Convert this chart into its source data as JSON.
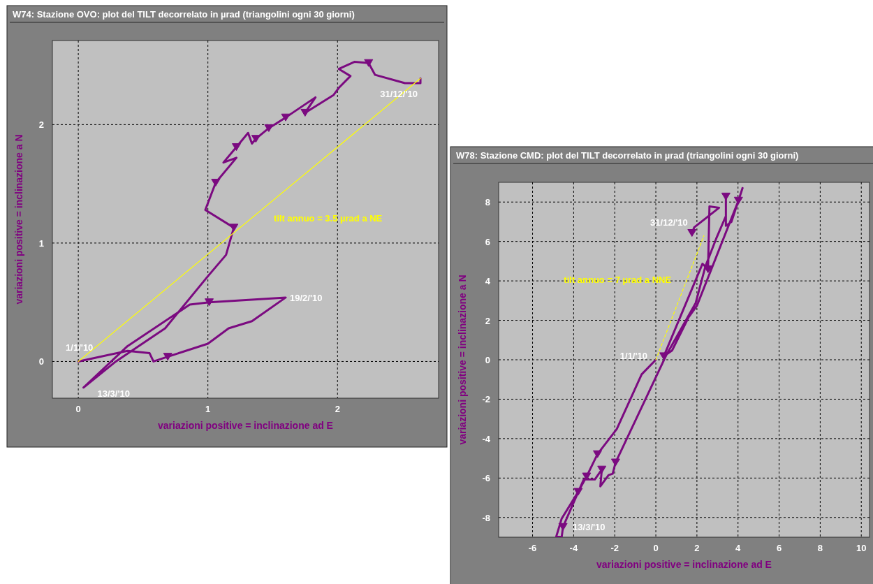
{
  "chart_data": [
    {
      "type": "line",
      "title": "W74: Stazione OVO: plot del TILT decorrelato in µrad (triangolini ogni 30 giorni)",
      "xlabel": "variazioni positive = inclinazione ad E",
      "ylabel": "variazioni positive = inclinazione a N",
      "xlim": [
        -0.2,
        2.78
      ],
      "ylim": [
        -0.31,
        2.71
      ],
      "xticks": [
        0,
        1,
        2
      ],
      "yticks": [
        0,
        1,
        2
      ],
      "grid": true,
      "series": [
        {
          "color": "#7b0a80",
          "x": [
            0,
            0.38,
            0.55,
            0.58,
            0.69,
            1.0,
            1.16,
            1.34,
            1.6,
            1.01,
            0.86,
            0.38,
            0.04,
            0.29,
            0.67,
            1.0,
            1.14,
            1.2,
            0.98,
            1.06,
            1.22,
            1.12,
            1.22,
            1.31,
            1.34,
            1.37,
            1.47,
            1.6,
            1.64,
            1.83,
            1.75,
            1.97,
            2.01,
            2.1,
            2.01,
            2.13,
            2.24,
            2.29,
            2.52,
            2.64,
            2.64
          ],
          "values": [
            0,
            0.09,
            0.07,
            0.0,
            0.04,
            0.15,
            0.28,
            0.34,
            0.54,
            0.5,
            0.48,
            0.13,
            -0.22,
            0.0,
            0.28,
            0.72,
            0.9,
            1.13,
            1.28,
            1.51,
            1.72,
            1.68,
            1.81,
            1.93,
            1.84,
            1.88,
            1.97,
            2.06,
            2.09,
            2.23,
            2.1,
            2.25,
            2.31,
            2.41,
            2.47,
            2.53,
            2.52,
            2.42,
            2.35,
            2.35,
            2.39
          ]
        },
        {
          "type": "scatter",
          "marker": "triangle",
          "color": "#7b0a80",
          "x": [
            0.69,
            1.01,
            1.2,
            1.06,
            1.22,
            1.37,
            1.47,
            1.6,
            1.75,
            2.24
          ],
          "values": [
            0.04,
            0.5,
            1.13,
            1.51,
            1.81,
            1.88,
            1.97,
            2.06,
            2.1,
            2.52
          ]
        },
        {
          "type": "line",
          "name": "tilt annuo = 3.5 µrad a NE",
          "color": "#ffff00",
          "line_style": "solid",
          "x": [
            0,
            2.64
          ],
          "values": [
            0,
            2.39
          ]
        }
      ],
      "annotations": [
        {
          "text": "1/1/'10",
          "x": 0,
          "y": 0
        },
        {
          "text": "19/2/'10",
          "x": 1.6,
          "y": 0.54
        },
        {
          "text": "13/3/'10",
          "x": 0.04,
          "y": -0.22
        },
        {
          "text": "31/12/'10",
          "x": 2.64,
          "y": 2.39
        }
      ]
    },
    {
      "type": "line",
      "title": "W78: Stazione CMD: plot del TILT decorrelato in µrad (triangolini ogni 30 giorni)",
      "xlabel": "variazioni positive = inclinazione ad E",
      "ylabel": "variazioni positive = inclinazione a N",
      "xlim": [
        -7.65,
        10.4
      ],
      "ylim": [
        -9,
        9
      ],
      "xticks": [
        -6,
        -4,
        -2,
        0,
        2,
        4,
        6,
        8,
        10
      ],
      "yticks": [
        -8,
        -6,
        -4,
        -2,
        0,
        2,
        4,
        6,
        8
      ],
      "grid": true,
      "series": [
        {
          "color": "#7b0a80",
          "x": [
            0,
            -0.69,
            -1.9,
            -2.84,
            -3.37,
            -3.78,
            -4.58,
            -4.85,
            -4.58,
            -4.52,
            -3.51,
            -2.97,
            -2.63,
            -2.7,
            -2.3,
            -2.1,
            -1.96,
            0.52,
            1.94,
            2.41,
            2.94,
            3.41,
            3.41,
            3.41,
            3.68,
            4.22,
            4.02,
            2.0,
            1.6,
            0.79,
            0.39,
            2.27,
            2.54,
            2.61,
            3.08,
            1.87,
            1.76
          ],
          "values": [
            0,
            -0.74,
            -3.51,
            -4.79,
            -5.92,
            -6.7,
            -8.05,
            -8.98,
            -8.98,
            -8.48,
            -6.07,
            -6.07,
            -5.57,
            -6.42,
            -5.85,
            -5.78,
            -5.21,
            0.26,
            2.88,
            4.73,
            6.15,
            7.29,
            8.28,
            6.79,
            7.0,
            8.71,
            8.07,
            2.74,
            2.17,
            0.47,
            0.18,
            4.87,
            4.59,
            7.78,
            7.71,
            6.72,
            6.43
          ]
        },
        {
          "type": "scatter",
          "marker": "triangle",
          "color": "#7b0a80",
          "x": [
            -2.84,
            -3.37,
            -3.78,
            -4.52,
            -2.63,
            -1.96,
            0.39,
            2.54,
            3.41,
            4.02,
            1.76
          ],
          "values": [
            -4.79,
            -5.92,
            -6.7,
            -8.48,
            -5.57,
            -5.21,
            0.18,
            4.59,
            8.28,
            8.07,
            6.43
          ]
        },
        {
          "type": "line",
          "name": "tilt annuo = 7 µrad a NNE",
          "color": "#ffff00",
          "line_style": "dashed",
          "x": [
            0,
            2.34
          ],
          "values": [
            0,
            6.29
          ]
        }
      ],
      "annotations": [
        {
          "text": "1/1/'10",
          "x": 0,
          "y": 0
        },
        {
          "text": "13/3/'10",
          "x": -4.52,
          "y": -8.48
        },
        {
          "text": "31/12/'10",
          "x": 1.76,
          "y": 6.43
        }
      ]
    }
  ]
}
